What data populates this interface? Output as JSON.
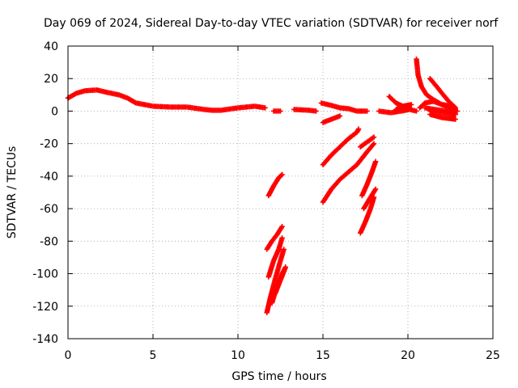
{
  "chart_data": {
    "type": "scatter",
    "title": "Day 069 of 2024, Sidereal Day-to-day VTEC variation (SDTVAR) for receiver norf",
    "xlabel": "GPS time / hours",
    "ylabel": "SDTVAR / TECUs",
    "xlim": [
      0,
      25
    ],
    "ylim": [
      -140,
      40
    ],
    "xticks": [
      "0",
      "5",
      "10",
      "15",
      "20",
      "25"
    ],
    "yticks": [
      "-140",
      "-120",
      "-100",
      "-80",
      "-60",
      "-40",
      "-20",
      "0",
      "20",
      "40"
    ],
    "grid": true,
    "marker": "plus",
    "color": "#ff0000",
    "series": [
      {
        "segments": [
          [
            [
              0,
              8
            ],
            [
              0.5,
              11
            ],
            [
              1,
              12.5
            ],
            [
              1.7,
              13
            ],
            [
              2.3,
              11.5
            ],
            [
              3,
              10
            ],
            [
              3.5,
              8
            ],
            [
              4,
              5
            ],
            [
              5,
              3
            ],
            [
              6,
              2.5
            ],
            [
              7,
              2.5
            ],
            [
              8,
              1
            ],
            [
              8.5,
              0.5
            ],
            [
              9,
              0.5
            ],
            [
              10,
              2
            ],
            [
              11,
              3
            ],
            [
              11.6,
              2
            ]
          ],
          [
            [
              12.1,
              0
            ],
            [
              12.5,
              0
            ]
          ],
          [
            [
              13.3,
              1
            ],
            [
              14.2,
              0.5
            ],
            [
              14.6,
              0
            ]
          ],
          [
            [
              14.9,
              5
            ],
            [
              15.5,
              3.5
            ],
            [
              16,
              2
            ],
            [
              16.5,
              1.5
            ],
            [
              17,
              0
            ],
            [
              17.6,
              0
            ]
          ],
          [
            [
              15,
              -7
            ],
            [
              15.5,
              -5
            ],
            [
              16,
              -3
            ]
          ],
          [
            [
              15,
              -33
            ],
            [
              15.5,
              -27
            ],
            [
              16,
              -22
            ],
            [
              16.5,
              -17
            ],
            [
              17,
              -13
            ],
            [
              17.1,
              -11
            ]
          ],
          [
            [
              15,
              -56
            ],
            [
              15.5,
              -48
            ],
            [
              16,
              -42
            ],
            [
              17,
              -33
            ],
            [
              17.6,
              -25
            ],
            [
              18,
              -20
            ]
          ],
          [
            [
              17.2,
              -22
            ],
            [
              17.6,
              -19
            ],
            [
              18,
              -16
            ]
          ],
          [
            [
              17.3,
              -52
            ],
            [
              17.6,
              -45
            ],
            [
              17.9,
              -37
            ],
            [
              18.1,
              -31
            ]
          ],
          [
            [
              17.4,
              -60
            ],
            [
              17.8,
              -53
            ],
            [
              18.1,
              -48
            ]
          ],
          [
            [
              17.2,
              -75
            ],
            [
              17.5,
              -68
            ],
            [
              17.8,
              -60
            ],
            [
              18,
              -53
            ]
          ],
          [
            [
              11.8,
              -52
            ],
            [
              12.1,
              -46
            ],
            [
              12.4,
              -41
            ],
            [
              12.6,
              -39
            ]
          ],
          [
            [
              11.7,
              -85
            ],
            [
              12,
              -80
            ],
            [
              12.3,
              -76
            ],
            [
              12.6,
              -71
            ]
          ],
          [
            [
              11.8,
              -102
            ],
            [
              12.1,
              -92
            ],
            [
              12.4,
              -85
            ],
            [
              12.6,
              -78
            ]
          ],
          [
            [
              11.7,
              -124
            ],
            [
              11.9,
              -115
            ],
            [
              12.2,
              -103
            ],
            [
              12.5,
              -92
            ],
            [
              12.7,
              -85
            ]
          ],
          [
            [
              12,
              -118
            ],
            [
              12.3,
              -108
            ],
            [
              12.6,
              -100
            ],
            [
              12.8,
              -96
            ]
          ],
          [
            [
              12.2,
              -112
            ],
            [
              12.5,
              -104
            ],
            [
              12.8,
              -96
            ]
          ],
          [
            [
              18.3,
              0
            ],
            [
              19,
              -1
            ],
            [
              19.6,
              0
            ],
            [
              20.1,
              1
            ],
            [
              20.5,
              0
            ]
          ],
          [
            [
              18.9,
              9
            ],
            [
              19.3,
              5
            ],
            [
              19.7,
              3
            ],
            [
              20.1,
              2
            ]
          ],
          [
            [
              19.3,
              1
            ],
            [
              19.7,
              3
            ],
            [
              20.2,
              4
            ]
          ],
          [
            [
              20.5,
              32
            ],
            [
              20.6,
              22
            ],
            [
              20.8,
              15
            ],
            [
              21.1,
              10
            ],
            [
              21.5,
              7
            ],
            [
              22,
              4
            ],
            [
              22.5,
              2
            ],
            [
              22.8,
              1
            ]
          ],
          [
            [
              20.7,
              2
            ],
            [
              21,
              5
            ],
            [
              21.5,
              6
            ],
            [
              22,
              4
            ],
            [
              22.7,
              3
            ]
          ],
          [
            [
              21.3,
              20
            ],
            [
              21.7,
              15
            ],
            [
              22,
              11
            ],
            [
              22.4,
              6
            ],
            [
              22.8,
              2
            ]
          ],
          [
            [
              21.3,
              -2
            ],
            [
              22,
              -4
            ],
            [
              22.8,
              -5
            ]
          ],
          [
            [
              21.3,
              0
            ],
            [
              22,
              -1
            ],
            [
              22.8,
              -2
            ]
          ],
          [
            [
              21,
              2
            ],
            [
              21.6,
              1
            ],
            [
              22.3,
              0
            ],
            [
              22.9,
              0
            ]
          ]
        ]
      }
    ]
  }
}
